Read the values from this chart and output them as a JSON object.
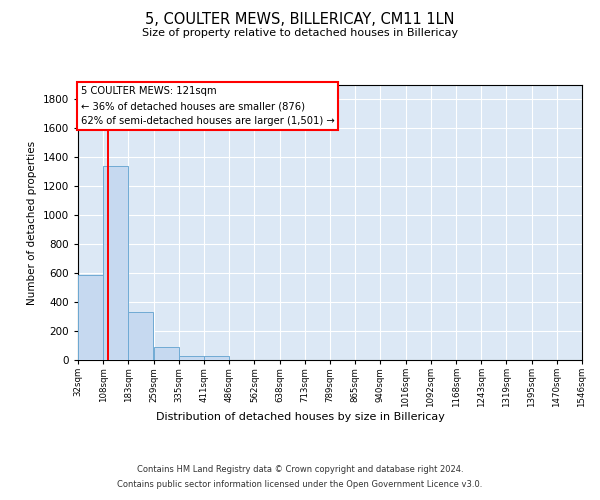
{
  "title": "5, COULTER MEWS, BILLERICAY, CM11 1LN",
  "subtitle": "Size of property relative to detached houses in Billericay",
  "xlabel": "Distribution of detached houses by size in Billericay",
  "ylabel": "Number of detached properties",
  "bar_color": "#c6d9f0",
  "bar_edge_color": "#6faad4",
  "background_color": "#dce8f5",
  "grid_color": "#ffffff",
  "bins": [
    32,
    108,
    183,
    259,
    335,
    411,
    486,
    562,
    638,
    713,
    789,
    865,
    940,
    1016,
    1092,
    1168,
    1243,
    1319,
    1395,
    1470,
    1546
  ],
  "bin_labels": [
    "32sqm",
    "108sqm",
    "183sqm",
    "259sqm",
    "335sqm",
    "411sqm",
    "486sqm",
    "562sqm",
    "638sqm",
    "713sqm",
    "789sqm",
    "865sqm",
    "940sqm",
    "1016sqm",
    "1092sqm",
    "1168sqm",
    "1243sqm",
    "1319sqm",
    "1395sqm",
    "1470sqm",
    "1546sqm"
  ],
  "bar_heights": [
    590,
    1340,
    330,
    90,
    30,
    28,
    0,
    0,
    0,
    0,
    0,
    0,
    0,
    0,
    0,
    0,
    0,
    0,
    0,
    0
  ],
  "ylim": [
    0,
    1900
  ],
  "yticks": [
    0,
    200,
    400,
    600,
    800,
    1000,
    1200,
    1400,
    1600,
    1800
  ],
  "property_line_x": 121,
  "annotation_line1": "5 COULTER MEWS: 121sqm",
  "annotation_line2": "← 36% of detached houses are smaller (876)",
  "annotation_line3": "62% of semi-detached houses are larger (1,501) →",
  "footer_line1": "Contains HM Land Registry data © Crown copyright and database right 2024.",
  "footer_line2": "Contains public sector information licensed under the Open Government Licence v3.0."
}
